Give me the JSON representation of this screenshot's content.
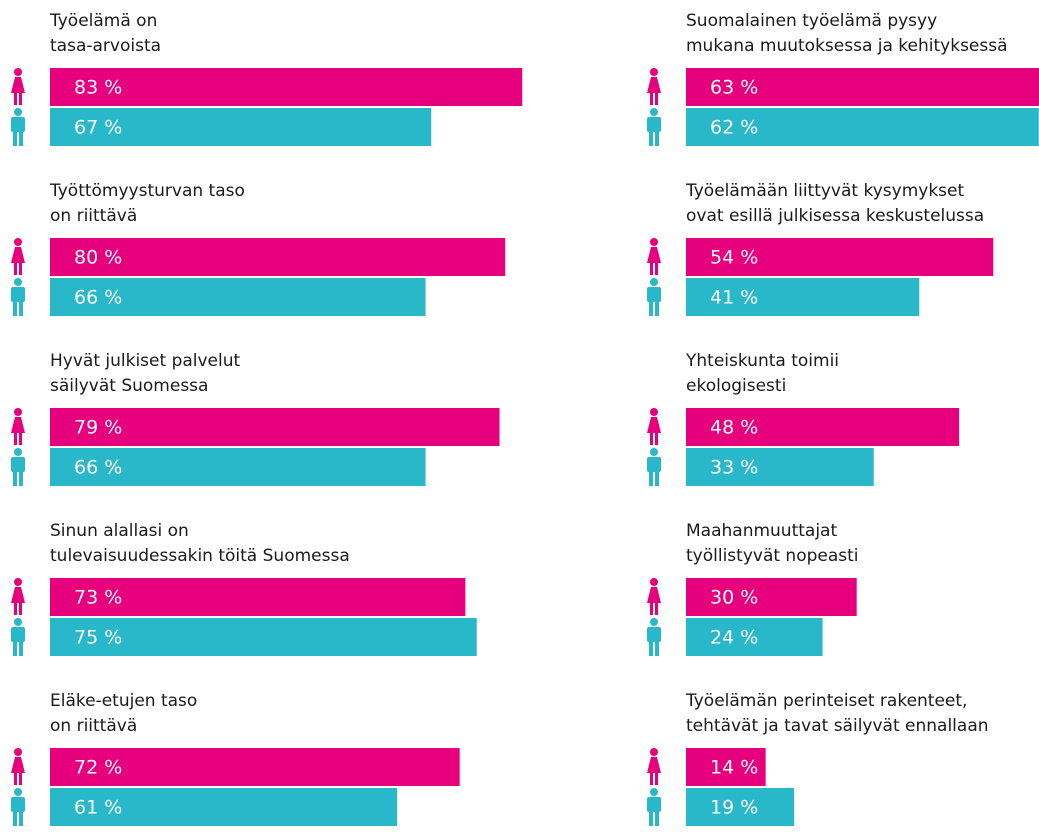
{
  "chart_data": [
    {
      "type": "bar",
      "title": [
        "Työelämä on",
        "tasa-arvoista"
      ],
      "series": [
        {
          "color": "#e6007e",
          "values": [
            83
          ],
          "value_labels": [
            "83 %"
          ]
        },
        {
          "color": "#29b8c9",
          "values": [
            67
          ],
          "value_labels": [
            "67 %"
          ]
        }
      ]
    },
    {
      "type": "bar",
      "title": [
        "Työttömyysturvan taso",
        "on riittävä"
      ],
      "series": [
        {
          "color": "#e6007e",
          "values": [
            80
          ],
          "value_labels": [
            "80 %"
          ]
        },
        {
          "color": "#29b8c9",
          "values": [
            66
          ],
          "value_labels": [
            "66 %"
          ]
        }
      ]
    },
    {
      "type": "bar",
      "title": [
        "Hyvät julkiset palvelut",
        "säilyvät Suomessa"
      ],
      "series": [
        {
          "color": "#e6007e",
          "values": [
            79
          ],
          "value_labels": [
            "79 %"
          ]
        },
        {
          "color": "#29b8c9",
          "values": [
            66
          ],
          "value_labels": [
            "66 %"
          ]
        }
      ]
    },
    {
      "type": "bar",
      "title": [
        "Sinun alallasi on",
        "tulevaisuudessakin töitä Suomessa"
      ],
      "series": [
        {
          "color": "#e6007e",
          "values": [
            73
          ],
          "value_labels": [
            "73 %"
          ]
        },
        {
          "color": "#29b8c9",
          "values": [
            75
          ],
          "value_labels": [
            "75 %"
          ]
        }
      ]
    },
    {
      "type": "bar",
      "title": [
        "Eläke-etujen taso",
        "on riittävä"
      ],
      "series": [
        {
          "color": "#e6007e",
          "values": [
            72
          ],
          "value_labels": [
            "72 %"
          ]
        },
        {
          "color": "#29b8c9",
          "values": [
            61
          ],
          "value_labels": [
            "61 %"
          ]
        }
      ]
    },
    {
      "type": "bar",
      "title": [
        "Suomalainen työelämä pysyy",
        "mukana muutoksessa ja kehityksessä"
      ],
      "series": [
        {
          "color": "#e6007e",
          "values": [
            63
          ],
          "value_labels": [
            "63 %"
          ]
        },
        {
          "color": "#29b8c9",
          "values": [
            62
          ],
          "value_labels": [
            "62 %"
          ]
        }
      ]
    },
    {
      "type": "bar",
      "title": [
        "Työelämään liittyvät kysymykset",
        "ovat esillä julkisessa keskustelussa"
      ],
      "series": [
        {
          "color": "#e6007e",
          "values": [
            54
          ],
          "value_labels": [
            "54 %"
          ]
        },
        {
          "color": "#29b8c9",
          "values": [
            41
          ],
          "value_labels": [
            "41 %"
          ]
        }
      ]
    },
    {
      "type": "bar",
      "title": [
        "Yhteiskunta toimii",
        "ekologisesti"
      ],
      "series": [
        {
          "color": "#e6007e",
          "values": [
            48
          ],
          "value_labels": [
            "48 %"
          ]
        },
        {
          "color": "#29b8c9",
          "values": [
            33
          ],
          "value_labels": [
            "33 %"
          ]
        }
      ]
    },
    {
      "type": "bar",
      "title": [
        "Maahanmuuttajat",
        "työllistyvät nopeasti"
      ],
      "series": [
        {
          "color": "#e6007e",
          "values": [
            30
          ],
          "value_labels": [
            "30 %"
          ]
        },
        {
          "color": "#29b8c9",
          "values": [
            24
          ],
          "value_labels": [
            "24 %"
          ]
        }
      ]
    },
    {
      "type": "bar",
      "title": [
        "Työelämän perinteiset rakenteet,",
        "tehtävät ja tavat säilyvät ennallaan"
      ],
      "series": [
        {
          "color": "#e6007e",
          "values": [
            14
          ],
          "value_labels": [
            "14 %"
          ]
        },
        {
          "color": "#29b8c9",
          "values": [
            19
          ],
          "value_labels": [
            "19 %"
          ]
        }
      ]
    }
  ]
}
